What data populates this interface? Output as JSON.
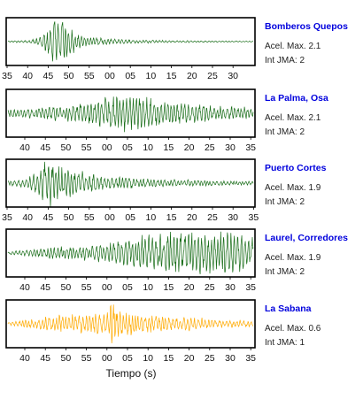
{
  "colors": {
    "station_name": "#0000dd",
    "frame": "#000000",
    "green_trace": "#1a6e1a",
    "orange_trace": "#ffaa00"
  },
  "chart_data": {
    "type": "line",
    "xlabel": "Tiempo (s)",
    "panels": [
      {
        "station": "Bomberos Quepos",
        "acel_label": "Acel. Max. 2.1",
        "int_label": "Int JMA: 2",
        "color": "#1a6e1a",
        "ticks": [
          "35",
          "40",
          "45",
          "50",
          "55",
          "00",
          "05",
          "10",
          "15",
          "20",
          "25",
          "30"
        ],
        "waveform": [
          {
            "t": 0,
            "a": 0.03
          },
          {
            "t": 0.08,
            "a": 0.05
          },
          {
            "t": 0.13,
            "a": 0.18
          },
          {
            "t": 0.16,
            "a": 0.55
          },
          {
            "t": 0.19,
            "a": 1.0
          },
          {
            "t": 0.22,
            "a": 0.85
          },
          {
            "t": 0.26,
            "a": 0.5
          },
          {
            "t": 0.31,
            "a": 0.25
          },
          {
            "t": 0.4,
            "a": 0.13
          },
          {
            "t": 0.55,
            "a": 0.07
          },
          {
            "t": 0.75,
            "a": 0.04
          },
          {
            "t": 1,
            "a": 0.02
          }
        ],
        "seed": 11
      },
      {
        "station": "La Palma, Osa",
        "acel_label": "Acel. Max. 2.1",
        "int_label": "Int JMA: 2",
        "color": "#1a6e1a",
        "ticks": [
          "40",
          "45",
          "50",
          "55",
          "00",
          "05",
          "10",
          "15",
          "20",
          "25",
          "30",
          "35"
        ],
        "waveform": [
          {
            "t": 0,
            "a": 0.15
          },
          {
            "t": 0.1,
            "a": 0.25
          },
          {
            "t": 0.25,
            "a": 0.35
          },
          {
            "t": 0.35,
            "a": 0.55
          },
          {
            "t": 0.45,
            "a": 0.75
          },
          {
            "t": 0.5,
            "a": 0.85
          },
          {
            "t": 0.55,
            "a": 0.7
          },
          {
            "t": 0.65,
            "a": 0.5
          },
          {
            "t": 0.8,
            "a": 0.35
          },
          {
            "t": 1,
            "a": 0.25
          }
        ],
        "seed": 23
      },
      {
        "station": "Puerto Cortes",
        "acel_label": "Acel. Max. 1.9",
        "int_label": "Int JMA: 2",
        "color": "#1a6e1a",
        "ticks": [
          "35",
          "40",
          "45",
          "50",
          "55",
          "00",
          "05",
          "10",
          "15",
          "20",
          "25",
          "30",
          "35"
        ],
        "waveform": [
          {
            "t": 0,
            "a": 0.1
          },
          {
            "t": 0.08,
            "a": 0.2
          },
          {
            "t": 0.13,
            "a": 0.6
          },
          {
            "t": 0.16,
            "a": 1.0
          },
          {
            "t": 0.2,
            "a": 0.75
          },
          {
            "t": 0.27,
            "a": 0.55
          },
          {
            "t": 0.35,
            "a": 0.35
          },
          {
            "t": 0.5,
            "a": 0.22
          },
          {
            "t": 0.7,
            "a": 0.14
          },
          {
            "t": 1,
            "a": 0.08
          }
        ],
        "seed": 37
      },
      {
        "station": "Laurel, Corredores",
        "acel_label": "Acel. Max. 1.9",
        "int_label": "Int JMA: 2",
        "color": "#1a6e1a",
        "ticks": [
          "40",
          "45",
          "50",
          "55",
          "00",
          "05",
          "10",
          "15",
          "20",
          "25",
          "30",
          "35"
        ],
        "waveform": [
          {
            "t": 0,
            "a": 0.05
          },
          {
            "t": 0.08,
            "a": 0.15
          },
          {
            "t": 0.2,
            "a": 0.25
          },
          {
            "t": 0.35,
            "a": 0.35
          },
          {
            "t": 0.5,
            "a": 0.6
          },
          {
            "t": 0.62,
            "a": 0.85
          },
          {
            "t": 0.75,
            "a": 0.85
          },
          {
            "t": 0.88,
            "a": 1.0
          },
          {
            "t": 0.95,
            "a": 0.8
          },
          {
            "t": 1,
            "a": 0.6
          }
        ],
        "seed": 53
      },
      {
        "station": "La Sabana",
        "acel_label": "Acel. Max. 0.6",
        "int_label": "Int JMA: 1",
        "color": "#ffaa00",
        "ticks": [
          "40",
          "45",
          "50",
          "55",
          "00",
          "05",
          "10",
          "15",
          "20",
          "25",
          "30",
          "35"
        ],
        "waveform": [
          {
            "t": 0,
            "a": 0.06
          },
          {
            "t": 0.08,
            "a": 0.2
          },
          {
            "t": 0.2,
            "a": 0.35
          },
          {
            "t": 0.3,
            "a": 0.4
          },
          {
            "t": 0.4,
            "a": 0.55
          },
          {
            "t": 0.42,
            "a": 1.0
          },
          {
            "t": 0.46,
            "a": 0.6
          },
          {
            "t": 0.55,
            "a": 0.4
          },
          {
            "t": 0.7,
            "a": 0.3
          },
          {
            "t": 0.85,
            "a": 0.2
          },
          {
            "t": 1,
            "a": 0.12
          }
        ],
        "seed": 71
      }
    ]
  }
}
